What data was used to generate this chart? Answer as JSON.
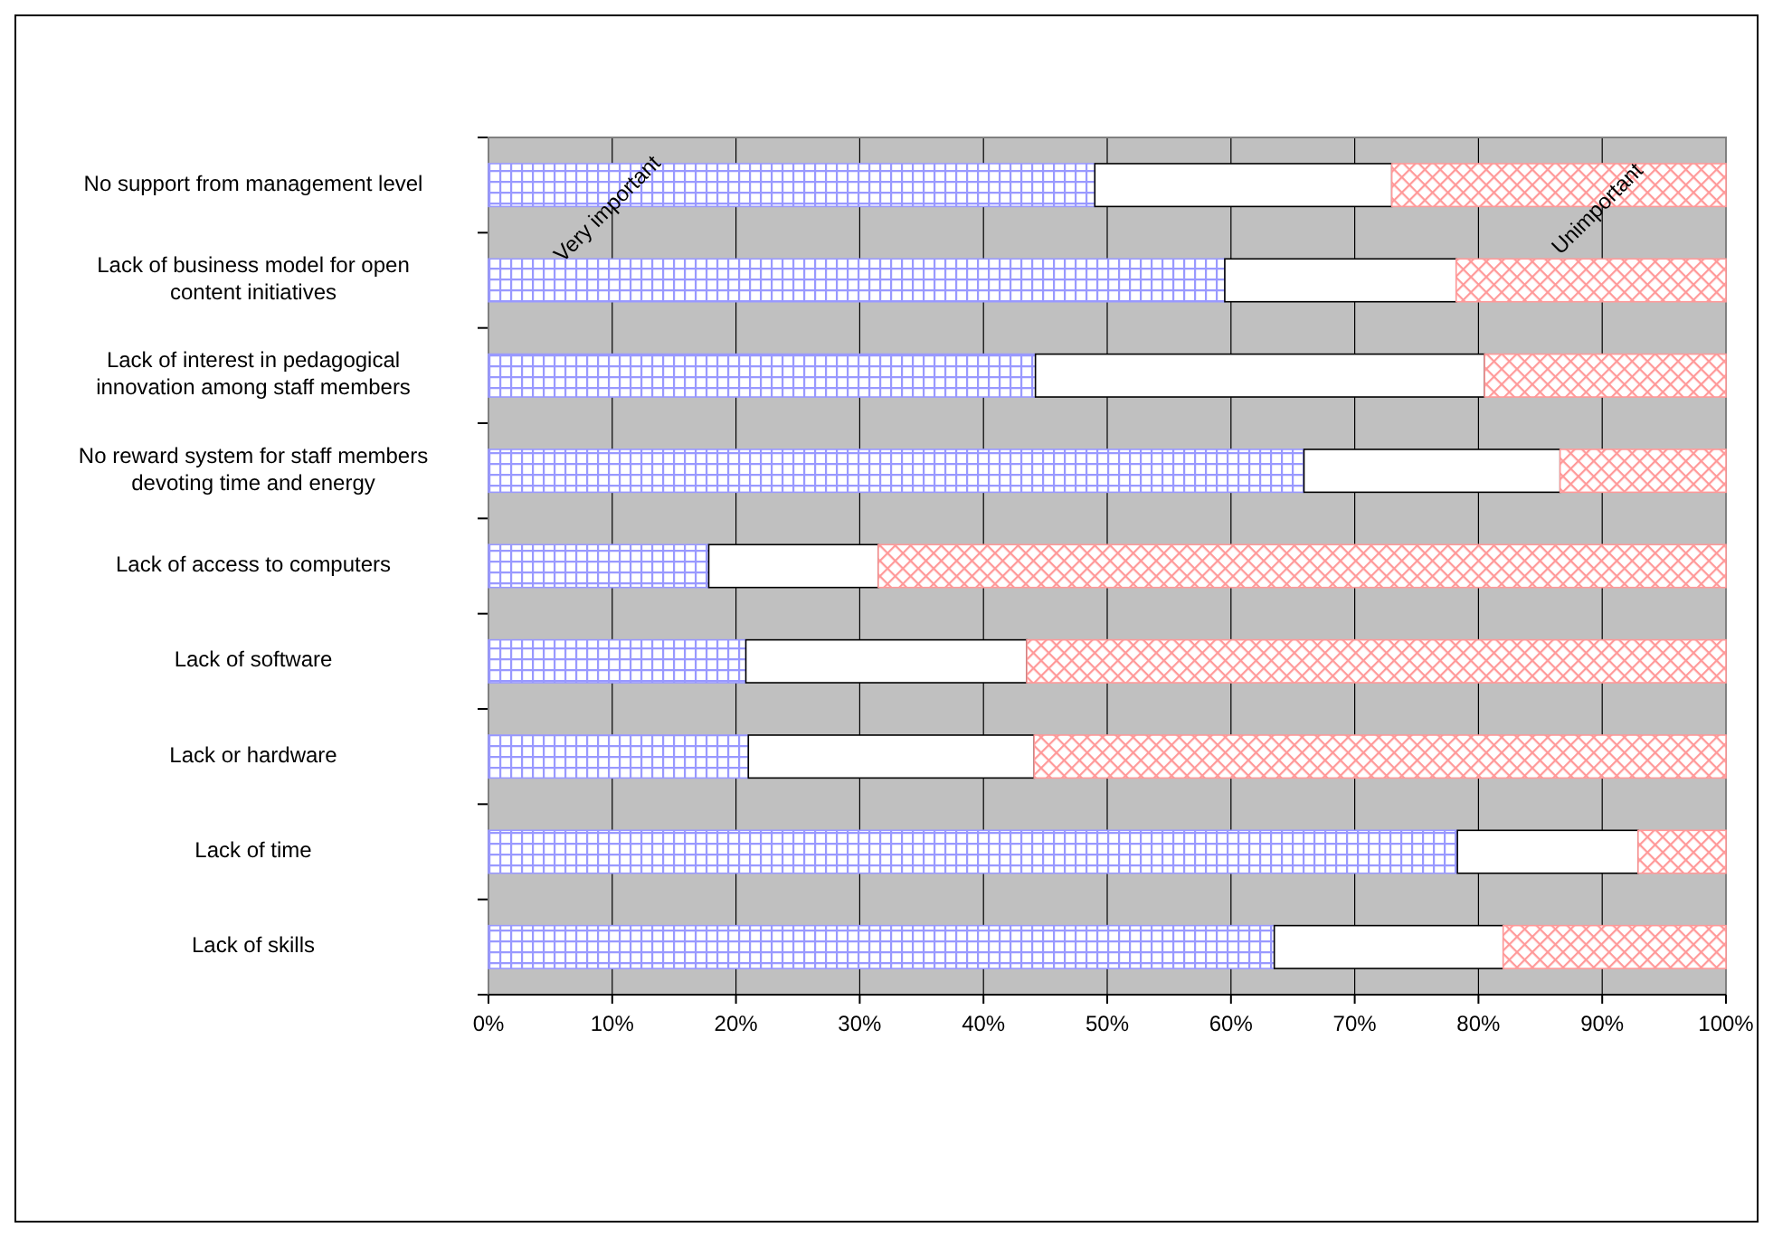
{
  "chart_data": {
    "type": "bar",
    "orientation": "horizontal",
    "stacked": true,
    "categories": [
      "No support from management level",
      "Lack of business model for open content initiatives",
      "Lack of interest in pedagogical innovation among staff members",
      "No reward system for staff members devoting time and energy",
      "Lack of access to computers",
      "Lack of software",
      "Lack or hardware",
      "Lack of time",
      "Lack of skills"
    ],
    "series": [
      {
        "name": "Very important",
        "color": "#9999ff",
        "values": [
          49,
          59.5,
          44.2,
          65.9,
          17.8,
          20.8,
          21,
          78.3,
          63.5
        ]
      },
      {
        "color": "#ffffff",
        "values": [
          24,
          18.7,
          36.3,
          20.7,
          13.7,
          22.7,
          23.1,
          14.6,
          18.5
        ]
      },
      {
        "name": "Unimportant",
        "color": "#ff9999",
        "values": [
          27,
          21.8,
          19.5,
          13.4,
          68.5,
          56.5,
          55.9,
          7.1,
          18
        ]
      }
    ],
    "xlim": [
      0,
      100
    ],
    "xticks": [
      {
        "value": 0,
        "label": "0%"
      },
      {
        "value": 10,
        "label": "10%"
      },
      {
        "value": 20,
        "label": "20%"
      },
      {
        "value": 30,
        "label": "30%"
      },
      {
        "value": 40,
        "label": "40%"
      },
      {
        "value": 50,
        "label": "50%"
      },
      {
        "value": 60,
        "label": "60%"
      },
      {
        "value": 70,
        "label": "70%"
      },
      {
        "value": 80,
        "label": "80%"
      },
      {
        "value": 90,
        "label": "90%"
      },
      {
        "value": 100,
        "label": "100%"
      }
    ],
    "grid": "x"
  }
}
